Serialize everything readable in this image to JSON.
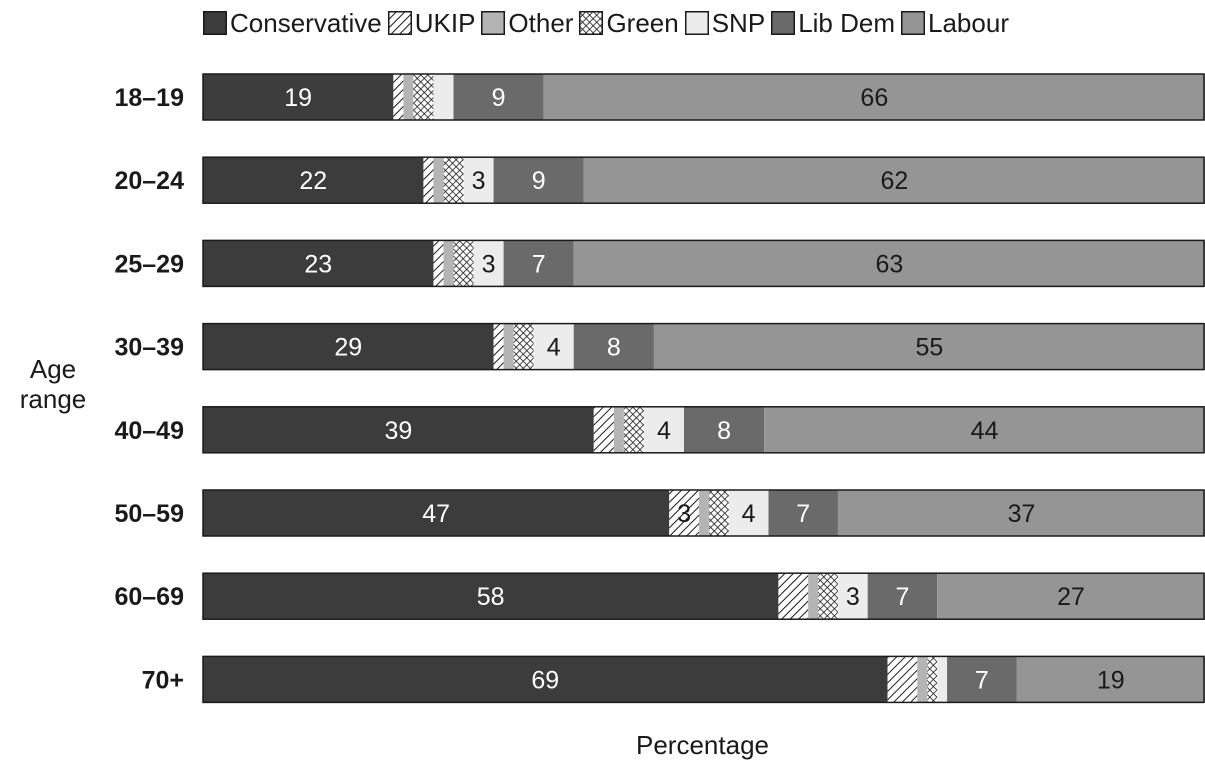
{
  "chart_data": {
    "type": "bar",
    "orientation": "horizontal",
    "stacked": true,
    "categories": [
      "18–19",
      "20–24",
      "25–29",
      "30–39",
      "40–49",
      "50–59",
      "60–69",
      "70+"
    ],
    "series": [
      {
        "name": "Conservative",
        "values": [
          19,
          22,
          23,
          29,
          39,
          47,
          58,
          69
        ],
        "color": "#3c3c3c",
        "pattern": "solid"
      },
      {
        "name": "UKIP",
        "values": [
          1,
          1,
          1,
          1,
          2,
          3,
          3,
          3
        ],
        "color": "#ffffff",
        "pattern": "diagonal-hatch"
      },
      {
        "name": "Other",
        "values": [
          1,
          1,
          1,
          1,
          1,
          1,
          1,
          1
        ],
        "color": "#b4b4b4",
        "pattern": "solid"
      },
      {
        "name": "Green",
        "values": [
          2,
          2,
          2,
          2,
          2,
          2,
          2,
          1
        ],
        "color": "#ffffff",
        "pattern": "crosshatch"
      },
      {
        "name": "SNP",
        "values": [
          2,
          3,
          3,
          4,
          4,
          4,
          3,
          1
        ],
        "color": "#ececec",
        "pattern": "solid"
      },
      {
        "name": "Lib Dem",
        "values": [
          9,
          9,
          7,
          8,
          8,
          7,
          7,
          7
        ],
        "color": "#6a6a6a",
        "pattern": "solid"
      },
      {
        "name": "Labour",
        "values": [
          66,
          62,
          63,
          55,
          44,
          37,
          27,
          19
        ],
        "color": "#959595",
        "pattern": "solid"
      }
    ],
    "data_labels": [
      [
        "19",
        "",
        "",
        "",
        "",
        "9",
        "66"
      ],
      [
        "22",
        "",
        "",
        "",
        "3",
        "9",
        "62"
      ],
      [
        "23",
        "",
        "",
        "",
        "3",
        "7",
        "63"
      ],
      [
        "29",
        "",
        "",
        "",
        "4",
        "8",
        "55"
      ],
      [
        "39",
        "",
        "",
        "",
        "4",
        "8",
        "44"
      ],
      [
        "47",
        "3",
        "",
        "",
        "4",
        "7",
        "37"
      ],
      [
        "58",
        "",
        "",
        "",
        "3",
        "7",
        "27"
      ],
      [
        "69",
        "",
        "",
        "",
        "",
        "7",
        "19"
      ]
    ],
    "label_colors": [
      "#ffffff",
      "#1a1a1a",
      "#1a1a1a",
      "#1a1a1a",
      "#1a1a1a",
      "#ffffff",
      "#1a1a1a"
    ],
    "xlabel": "Percentage",
    "ylabel": "Age range",
    "xlim": [
      0,
      100
    ],
    "legend_position": "top",
    "grid": false
  },
  "legend": {
    "items": [
      "Conservative",
      "UKIP",
      "Other",
      "Green",
      "SNP",
      "Lib Dem",
      "Labour"
    ]
  },
  "axes": {
    "xlabel": "Percentage",
    "ylabel_line1": "Age",
    "ylabel_line2": "range"
  }
}
